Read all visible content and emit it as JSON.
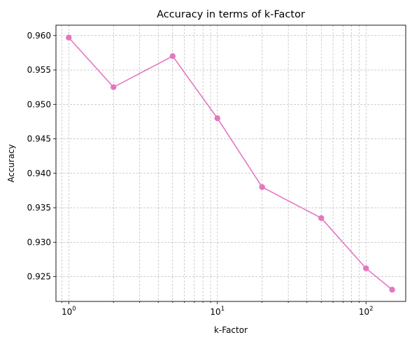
{
  "chart_data": {
    "type": "line",
    "title": "Accuracy in terms of k-Factor",
    "xlabel": "k-Factor",
    "ylabel": "Accuracy",
    "xscale": "log",
    "xlim": [
      0.82,
      185
    ],
    "ylim": [
      0.9214,
      0.9615
    ],
    "grid": "major and minor, dashed",
    "x_ticks": [
      {
        "value": 1,
        "base": "10",
        "exp": "0"
      },
      {
        "value": 10,
        "base": "10",
        "exp": "1"
      },
      {
        "value": 100,
        "base": "10",
        "exp": "2"
      }
    ],
    "y_ticks": [
      "0.925",
      "0.930",
      "0.935",
      "0.940",
      "0.945",
      "0.950",
      "0.955",
      "0.960"
    ],
    "series": [
      {
        "color": "#e377c2",
        "marker": "circle",
        "x": [
          1,
          2,
          5,
          10,
          20,
          50,
          100,
          150
        ],
        "y": [
          0.9597,
          0.9525,
          0.957,
          0.948,
          0.938,
          0.9335,
          0.9262,
          0.9231
        ]
      }
    ]
  }
}
